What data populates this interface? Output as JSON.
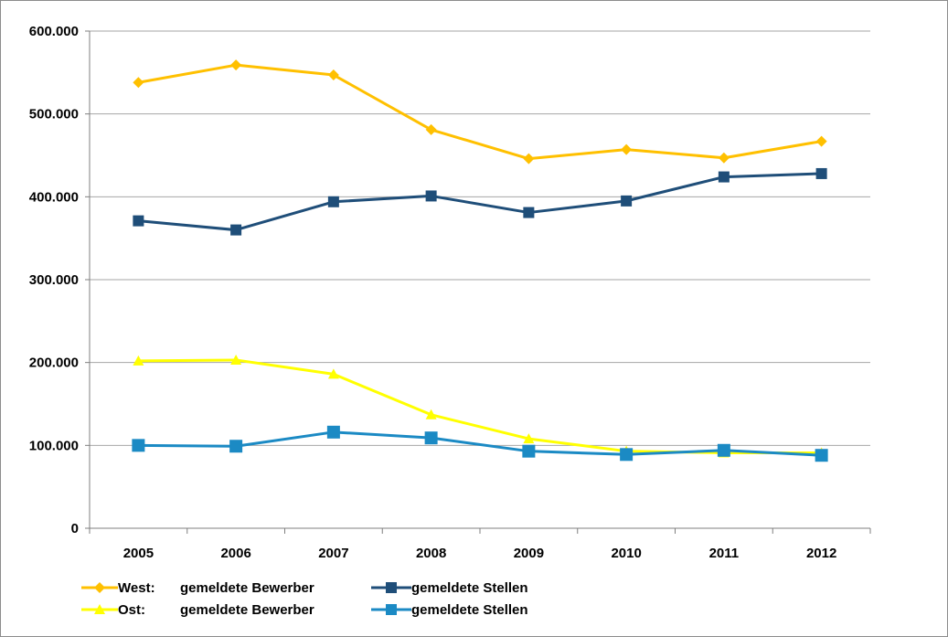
{
  "chart_data": {
    "type": "line",
    "title": "",
    "xlabel": "",
    "ylabel": "",
    "categories": [
      "2005",
      "2006",
      "2007",
      "2008",
      "2009",
      "2010",
      "2011",
      "2012"
    ],
    "ylim": [
      0,
      600000
    ],
    "yticks": [
      0,
      100000,
      200000,
      300000,
      400000,
      500000,
      600000
    ],
    "ytick_labels": [
      "0",
      "100.000",
      "200.000",
      "300.000",
      "400.000",
      "500.000",
      "600.000"
    ],
    "grid": true,
    "legend_position": "bottom",
    "series": [
      {
        "name": "gemeldete Bewerber",
        "group": "West:",
        "marker": "diamond",
        "color": "#FFC000",
        "values": [
          538000,
          559000,
          547000,
          481000,
          446000,
          457000,
          447000,
          467000
        ]
      },
      {
        "name": "gemeldete Stellen",
        "group": "West:",
        "marker": "square",
        "color": "#1F4E79",
        "values": [
          371000,
          360000,
          394000,
          401000,
          381000,
          395000,
          424000,
          428000
        ]
      },
      {
        "name": "gemeldete Bewerber",
        "group": "Ost:",
        "marker": "triangle",
        "color": "#FFFF00",
        "values": [
          202000,
          203000,
          186000,
          137000,
          108000,
          93000,
          91000,
          91000
        ]
      },
      {
        "name": "gemeldete Stellen",
        "group": "Ost:",
        "marker": "square",
        "color": "#1B8AC4",
        "values": [
          100000,
          99000,
          116000,
          109000,
          93000,
          89000,
          94000,
          88000
        ]
      }
    ]
  },
  "legend": {
    "rows": [
      {
        "prefix": "West:",
        "left_label": "gemeldete Bewerber",
        "right_label": "gemeldete Stellen"
      },
      {
        "prefix": "Ost:",
        "left_label": "gemeldete Bewerber",
        "right_label": "gemeldete Stellen"
      }
    ]
  }
}
